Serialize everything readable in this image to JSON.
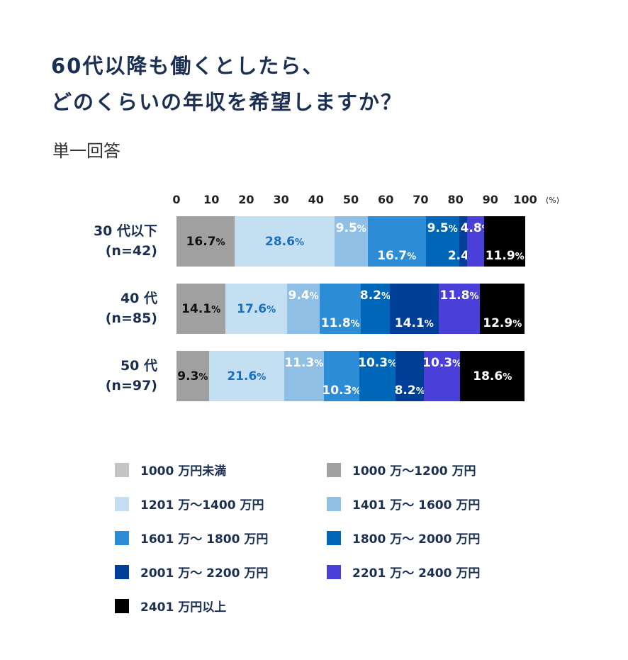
{
  "title_lines": [
    "60代以降も働くとしたら、",
    "どのくらいの年収を希望しますか？"
  ],
  "subtitle": "単一回答",
  "chart_data": {
    "type": "bar",
    "orientation": "horizontal",
    "stacked": true,
    "xlim": [
      0,
      100
    ],
    "xticks": [
      "0",
      "10",
      "20",
      "30",
      "40",
      "50",
      "60",
      "70",
      "80",
      "90",
      "100"
    ],
    "xunit": "(%)",
    "legend_position": "bottom",
    "grid": false,
    "categories": [
      {
        "line1": "30 代以下",
        "line2": "(n=42)"
      },
      {
        "line1": "40 代",
        "line2": "(n=85)"
      },
      {
        "line1": "50 代",
        "line2": "(n=97)"
      }
    ],
    "series": [
      {
        "name": "1000 万円未満",
        "color": "#c4c4c4",
        "values": [
          0,
          0,
          0
        ]
      },
      {
        "name": "1000 万〜1200 万円",
        "color": "#a0a0a0",
        "values": [
          16.7,
          14.1,
          9.3
        ]
      },
      {
        "name": "1201 万〜1400 万円",
        "color": "#c5dff2",
        "values": [
          28.6,
          17.6,
          21.6
        ]
      },
      {
        "name": "1401 万〜 1600 万円",
        "color": "#8fbfe4",
        "values": [
          9.5,
          9.4,
          11.3
        ]
      },
      {
        "name": "1601 万〜 1800 万円",
        "color": "#2d8cd6",
        "values": [
          16.7,
          11.8,
          10.3
        ]
      },
      {
        "name": "1800 万〜 2000 万円",
        "color": "#0066b8",
        "values": [
          9.5,
          8.2,
          10.3
        ]
      },
      {
        "name": "2001 万〜 2200 万円",
        "color": "#003f98",
        "values": [
          2.4,
          14.1,
          8.2
        ]
      },
      {
        "name": "2201 万〜 2400 万円",
        "color": "#4a3fd8",
        "values": [
          4.8,
          11.8,
          10.3
        ]
      },
      {
        "name": "2401 万円以上",
        "color": "#000000",
        "values": [
          11.9,
          12.9,
          18.6
        ]
      }
    ]
  }
}
